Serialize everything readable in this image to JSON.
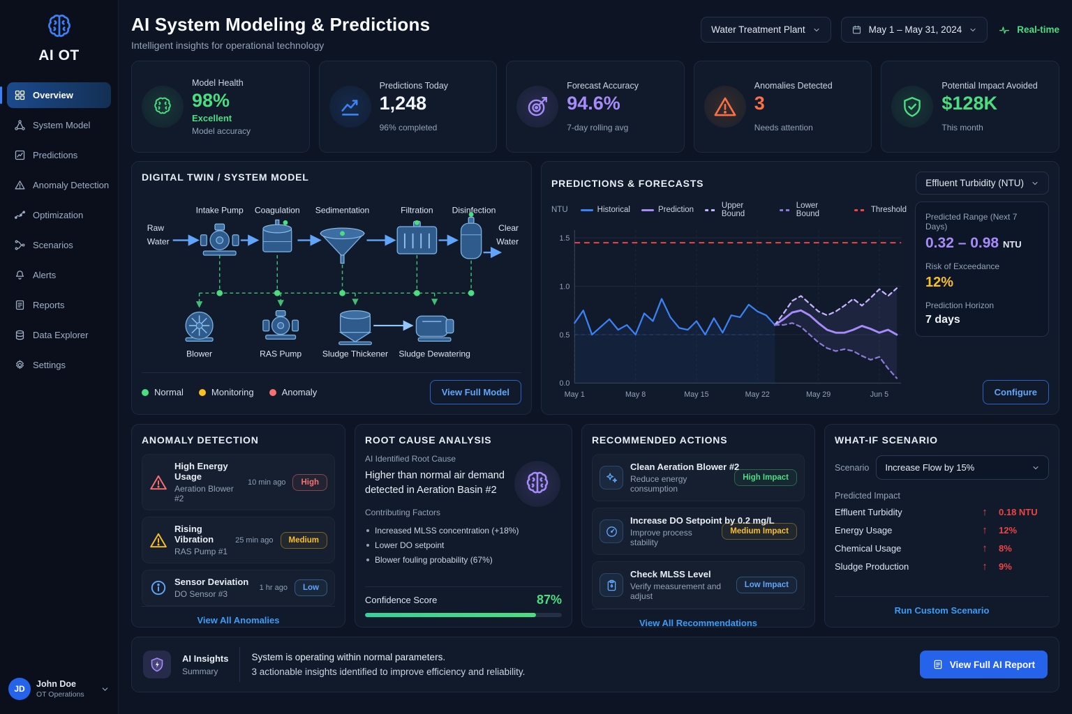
{
  "app": {
    "logo_text": "AI OT"
  },
  "sidebar": {
    "items": [
      {
        "label": "Overview",
        "active": true
      },
      {
        "label": "System Model"
      },
      {
        "label": "Predictions"
      },
      {
        "label": "Anomaly Detection"
      },
      {
        "label": "Optimization"
      },
      {
        "label": "Scenarios"
      },
      {
        "label": "Alerts"
      },
      {
        "label": "Reports"
      },
      {
        "label": "Data Explorer"
      },
      {
        "label": "Settings"
      }
    ],
    "user": {
      "initials": "JD",
      "name": "John Doe",
      "role": "OT Operations"
    }
  },
  "header": {
    "title": "AI System Modeling & Predictions",
    "subtitle": "Intelligent insights for operational technology",
    "plant_selector": "Water Treatment Plant",
    "date_range": "May 1 – May 31, 2024",
    "realtime_label": "Real-time"
  },
  "kpis": {
    "model_health": {
      "label": "Model Health",
      "value": "98%",
      "sub": "Excellent",
      "note": "Model accuracy"
    },
    "predictions_today": {
      "label": "Predictions Today",
      "value": "1,248",
      "note": "96% completed"
    },
    "forecast_accuracy": {
      "label": "Forecast Accuracy",
      "value": "94.6%",
      "note": "7-day rolling avg"
    },
    "anomalies": {
      "label": "Anomalies Detected",
      "value": "3",
      "note": "Needs attention"
    },
    "impact": {
      "label": "Potential Impact Avoided",
      "value": "$128K",
      "note": "This month"
    }
  },
  "digital_twin": {
    "title": "DIGITAL TWIN / SYSTEM MODEL",
    "source_l1": "Raw",
    "source_l2": "Water",
    "sink_l1": "Clear",
    "sink_l2": "Water",
    "units": {
      "intake": "Intake Pump",
      "coagulation": "Coagulation",
      "sedimentation": "Sedimentation",
      "filtration": "Filtration",
      "disinfection": "Disinfection",
      "blower": "Blower",
      "ras_pump": "RAS Pump",
      "thickener": "Sludge Thickener",
      "dewatering": "Sludge Dewatering"
    },
    "legend": {
      "normal": "Normal",
      "monitoring": "Monitoring",
      "anomaly": "Anomaly"
    },
    "button": "View Full Model"
  },
  "predictions_panel": {
    "title": "PREDICTIONS & FORECASTS",
    "metric_selector": "Effluent Turbidity (NTU)",
    "axis_unit": "NTU",
    "stats": {
      "range_label": "Predicted Range (Next 7 Days)",
      "range_value": "0.32 – 0.98",
      "range_unit": "NTU",
      "risk_label": "Risk of Exceedance",
      "risk_value": "12%",
      "horizon_label": "Prediction Horizon",
      "horizon_value": "7 days"
    },
    "configure_label": "Configure"
  },
  "chart_data": {
    "type": "line",
    "title": "Predictions & Forecasts — Effluent Turbidity",
    "ylabel": "NTU",
    "ylim": [
      0,
      1.58
    ],
    "yticks": [
      0,
      0.5,
      1.0,
      1.5
    ],
    "xlim": [
      1,
      38.5
    ],
    "xticks": [
      {
        "x": 1,
        "label": "May 1"
      },
      {
        "x": 8,
        "label": "May 8"
      },
      {
        "x": 15,
        "label": "May 15"
      },
      {
        "x": 22,
        "label": "May 22"
      },
      {
        "x": 29,
        "label": "May 29"
      },
      {
        "x": 36,
        "label": "Jun 5"
      }
    ],
    "grid": true,
    "legend_position": "top",
    "baseline": {
      "value": 0.5,
      "x_start": 1,
      "x_end": 24
    },
    "series": [
      {
        "name": "Historical",
        "color": "#3b82f6",
        "style": "solid",
        "x_start": 1,
        "fill": true,
        "values": [
          0.62,
          0.75,
          0.5,
          0.58,
          0.66,
          0.55,
          0.6,
          0.5,
          0.72,
          0.64,
          0.87,
          0.68,
          0.57,
          0.55,
          0.64,
          0.5,
          0.67,
          0.52,
          0.7,
          0.68,
          0.81,
          0.74,
          0.7,
          0.6
        ]
      },
      {
        "name": "Prediction",
        "color": "#a78bfa",
        "style": "solid",
        "x_start": 24,
        "width": 3,
        "values": [
          0.6,
          0.66,
          0.73,
          0.75,
          0.7,
          0.62,
          0.55,
          0.52,
          0.52,
          0.55,
          0.59,
          0.56,
          0.52,
          0.55,
          0.5
        ]
      },
      {
        "name": "Upper Bound",
        "color": "#c4b5fd",
        "style": "dashed",
        "x_start": 24,
        "values": [
          0.6,
          0.72,
          0.85,
          0.9,
          0.82,
          0.74,
          0.7,
          0.74,
          0.8,
          0.87,
          0.8,
          0.88,
          0.97,
          0.9,
          0.98
        ]
      },
      {
        "name": "Lower Bound",
        "color": "#8b78d8",
        "style": "dashed",
        "x_start": 24,
        "values": [
          0.6,
          0.6,
          0.62,
          0.58,
          0.5,
          0.42,
          0.36,
          0.33,
          0.35,
          0.33,
          0.28,
          0.24,
          0.27,
          0.15,
          0.05
        ]
      },
      {
        "name": "Threshold",
        "color": "#ef4444",
        "style": "dashed",
        "value": 1.45
      }
    ]
  },
  "anomaly_panel": {
    "title": "ANOMALY DETECTION",
    "items": [
      {
        "title": "High Energy Usage",
        "source": "Aeration Blower #2",
        "time": "10 min ago",
        "severity": "High"
      },
      {
        "title": "Rising Vibration",
        "source": "RAS Pump #1",
        "time": "25 min ago",
        "severity": "Medium"
      },
      {
        "title": "Sensor Deviation",
        "source": "DO Sensor #3",
        "time": "1 hr ago",
        "severity": "Low"
      }
    ],
    "footer": "View All Anomalies"
  },
  "root_cause": {
    "title": "ROOT CAUSE ANALYSIS",
    "section_label": "AI Identified Root Cause",
    "cause": "Higher than normal air demand detected in Aeration Basin #2",
    "factors_label": "Contributing Factors",
    "factors": [
      "Increased MLSS concentration (+18%)",
      "Lower DO setpoint",
      "Blower fouling probability (67%)"
    ],
    "confidence_label": "Confidence Score",
    "confidence_value": "87%",
    "confidence_pct": 87
  },
  "actions_panel": {
    "title": "RECOMMENDED ACTIONS",
    "items": [
      {
        "title": "Clean Aeration Blower #2",
        "desc": "Reduce energy consumption",
        "impact": "High Impact"
      },
      {
        "title": "Increase DO Setpoint by 0.2 mg/L",
        "desc": "Improve process stability",
        "impact": "Medium Impact"
      },
      {
        "title": "Check MLSS Level",
        "desc": "Verify measurement and adjust",
        "impact": "Low Impact"
      }
    ],
    "footer": "View All Recommendations"
  },
  "what_if": {
    "title": "WHAT-IF SCENARIO",
    "scenario_label": "Scenario",
    "scenario_value": "Increase Flow by 15%",
    "impact_label": "Predicted Impact",
    "impacts": [
      {
        "name": "Effluent Turbidity",
        "delta": "0.18 NTU"
      },
      {
        "name": "Energy Usage",
        "delta": "12%"
      },
      {
        "name": "Chemical Usage",
        "delta": "8%"
      },
      {
        "name": "Sludge Production",
        "delta": "9%"
      }
    ],
    "footer": "Run Custom Scenario"
  },
  "insights_bar": {
    "title": "AI Insights",
    "subtitle": "Summary",
    "line1": "System is operating within normal parameters.",
    "line2": "3 actionable insights identified to improve efficiency and reliability.",
    "button": "View Full AI Report"
  },
  "colors": {
    "accent": "#3b82f6",
    "green": "#4ade80",
    "purple": "#a78bfa",
    "orange": "#fb7144",
    "red": "#ef4444",
    "yellow": "#fbbf24"
  }
}
